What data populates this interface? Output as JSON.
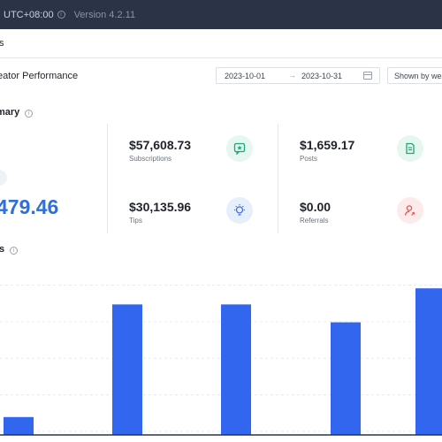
{
  "topbar": {
    "timezone": "UTC+08:00",
    "version": "Version 4.2.11"
  },
  "breadcrumb": {
    "label": "ts"
  },
  "filters": {
    "title": "eator Performance",
    "start_date": "2023-10-01",
    "end_date": "2023-10-31",
    "range_separator": "→",
    "group_by": "Shown by week"
  },
  "summary": {
    "title": "mary",
    "total": "479.46",
    "metrics": [
      {
        "id": "subscriptions",
        "value": "$57,608.73",
        "label": "Subscriptions",
        "icon": "star-chat-icon",
        "color": "#1aa87a",
        "bg": "#e6f7f0"
      },
      {
        "id": "posts",
        "value": "$1,659.17",
        "label": "Posts",
        "icon": "document-icon",
        "color": "#1aa87a",
        "bg": "#e6f7f0"
      },
      {
        "id": "tips",
        "value": "$30,135.96",
        "label": "Tips",
        "icon": "lightbulb-icon",
        "color": "#3b6fe0",
        "bg": "#e8effc"
      },
      {
        "id": "referrals",
        "value": "$0.00",
        "label": "Referrals",
        "icon": "user-referral-icon",
        "color": "#e0564a",
        "bg": "#fcebea"
      }
    ]
  },
  "details": {
    "title": "ls"
  },
  "chart_data": {
    "type": "bar",
    "bar_color": "#3366ee",
    "grid": true,
    "values": [
      10,
      73,
      73,
      63,
      82
    ],
    "ylim": [
      0,
      90
    ]
  }
}
